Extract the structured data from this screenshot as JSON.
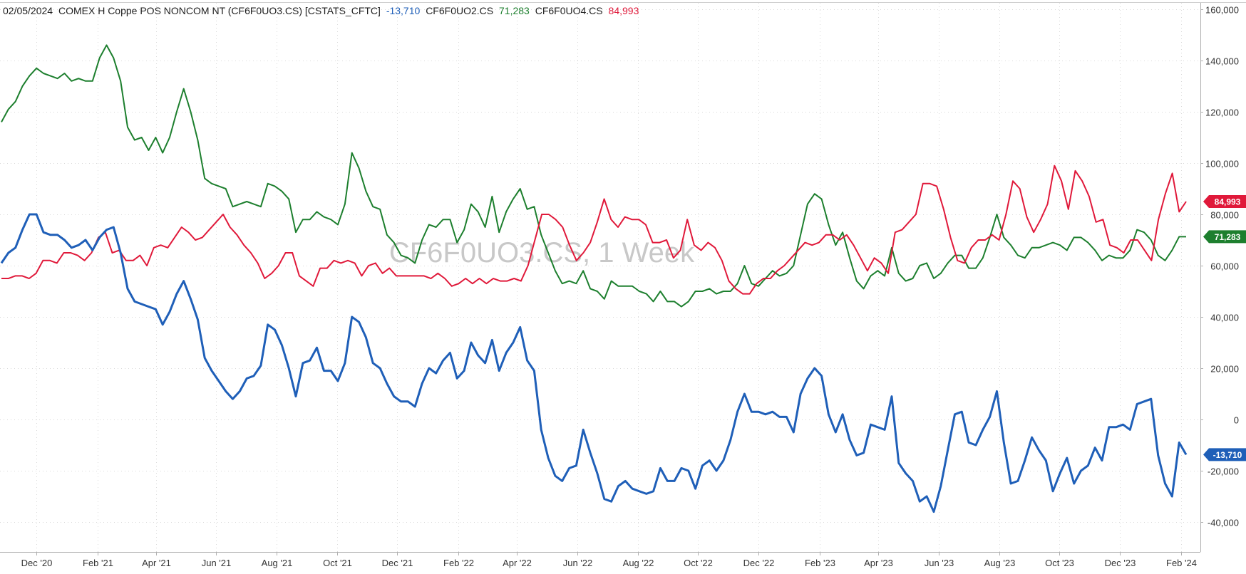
{
  "header": {
    "date": "02/05/2024",
    "series1_name": "COMEX H Coppe POS NONCOM NT (CF6F0UO3.CS) [CSTATS_CFTC]",
    "series1_value": "-13,710",
    "series2_name": "CF6F0UO2.CS",
    "series2_value": "71,283",
    "series3_name": "CF6F0UO4.CS",
    "series3_value": "84,993"
  },
  "watermark": "CF6F0UO3.CS, 1 Week",
  "colors": {
    "blue": "#1f5fb8",
    "green": "#1d7f2e",
    "red": "#e0193a",
    "grid": "#d9d9d9",
    "axis": "#b0b0b0"
  },
  "chart_data": {
    "type": "line",
    "x_start": "2020-10-27",
    "x_end": "2024-02-06",
    "x_step": "1 week",
    "x_ticks": [
      {
        "date": "2020-12-01",
        "label": "Dec '20"
      },
      {
        "date": "2021-02-01",
        "label": "Feb '21"
      },
      {
        "date": "2021-04-01",
        "label": "Apr '21"
      },
      {
        "date": "2021-06-01",
        "label": "Jun '21"
      },
      {
        "date": "2021-08-01",
        "label": "Aug '21"
      },
      {
        "date": "2021-10-01",
        "label": "Oct '21"
      },
      {
        "date": "2021-12-01",
        "label": "Dec '21"
      },
      {
        "date": "2022-02-01",
        "label": "Feb '22"
      },
      {
        "date": "2022-04-01",
        "label": "Apr '22"
      },
      {
        "date": "2022-06-01",
        "label": "Jun '22"
      },
      {
        "date": "2022-08-01",
        "label": "Aug '22"
      },
      {
        "date": "2022-10-01",
        "label": "Oct '22"
      },
      {
        "date": "2022-12-01",
        "label": "Dec '22"
      },
      {
        "date": "2023-02-01",
        "label": "Feb '23"
      },
      {
        "date": "2023-04-01",
        "label": "Apr '23"
      },
      {
        "date": "2023-06-01",
        "label": "Jun '23"
      },
      {
        "date": "2023-08-01",
        "label": "Aug '23"
      },
      {
        "date": "2023-10-01",
        "label": "Oct '23"
      },
      {
        "date": "2023-12-01",
        "label": "Dec '23"
      },
      {
        "date": "2024-02-01",
        "label": "Feb '24"
      }
    ],
    "y_ticks": [
      {
        "value": 160000,
        "label": "160,000"
      },
      {
        "value": 140000,
        "label": "140,000"
      },
      {
        "value": 120000,
        "label": "120,000"
      },
      {
        "value": 100000,
        "label": "100,000"
      },
      {
        "value": 80000,
        "label": "80,000"
      },
      {
        "value": 60000,
        "label": "60,000"
      },
      {
        "value": 40000,
        "label": "40,000"
      },
      {
        "value": 20000,
        "label": "20,000"
      },
      {
        "value": 0,
        "label": "0"
      },
      {
        "value": -20000,
        "label": "-20,000"
      },
      {
        "value": -40000,
        "label": "-40,000"
      }
    ],
    "ylim": [
      -50000,
      162000
    ],
    "grid": true,
    "series": [
      {
        "name": "CF6F0UO2.CS",
        "color": "#1d7f2e",
        "last_label": "71,283",
        "values": [
          116000,
          121000,
          124000,
          130000,
          134000,
          137000,
          135000,
          134000,
          133000,
          135000,
          132000,
          133000,
          132000,
          132000,
          141000,
          146000,
          141000,
          132000,
          114000,
          109000,
          110000,
          105000,
          110000,
          104000,
          110000,
          120000,
          129000,
          120000,
          109000,
          94000,
          92000,
          91000,
          90000,
          83000,
          84000,
          85000,
          84000,
          83000,
          92000,
          91000,
          89000,
          86000,
          73000,
          78000,
          78000,
          81000,
          79000,
          78000,
          76000,
          84000,
          104000,
          98000,
          89000,
          83000,
          82000,
          72000,
          69000,
          64000,
          63000,
          61000,
          70000,
          76000,
          75000,
          78000,
          78000,
          69000,
          74000,
          84000,
          81000,
          75000,
          87000,
          73000,
          81000,
          86000,
          90000,
          82000,
          83000,
          72000,
          65000,
          58000,
          53000,
          54000,
          53000,
          58000,
          51000,
          50000,
          47000,
          54000,
          52000,
          52000,
          52000,
          50000,
          49000,
          46000,
          50000,
          46000,
          46000,
          44000,
          46000,
          50000,
          50000,
          51000,
          49000,
          50000,
          50000,
          53000,
          60000,
          53000,
          52000,
          55000,
          58000,
          56000,
          57000,
          60000,
          72000,
          84000,
          88000,
          86000,
          76000,
          68000,
          73000,
          63000,
          54000,
          51000,
          56000,
          58000,
          56000,
          67000,
          57000,
          54000,
          55000,
          60000,
          61000,
          55000,
          57000,
          61000,
          64000,
          64000,
          59000,
          59000,
          63000,
          71000,
          80000,
          71000,
          68000,
          64000,
          63000,
          67000,
          67000,
          68000,
          69000,
          68000,
          66000,
          71000,
          71000,
          69000,
          66000,
          62000,
          64000,
          63000,
          63000,
          66000,
          74000,
          73000,
          70000,
          64000,
          62000,
          66000,
          71283,
          71283
        ]
      },
      {
        "name": "CF6F0UO4.CS",
        "color": "#e0193a",
        "last_label": "84,993",
        "values": [
          55000,
          55000,
          56000,
          56000,
          55000,
          57000,
          62000,
          62000,
          61000,
          65000,
          65000,
          64000,
          62000,
          65000,
          71000,
          73000,
          65000,
          66000,
          62000,
          62000,
          64000,
          60000,
          67000,
          68000,
          67000,
          71000,
          75000,
          73000,
          70000,
          71000,
          74000,
          77000,
          80000,
          75000,
          72000,
          68000,
          65000,
          61000,
          55000,
          57000,
          60000,
          65000,
          65000,
          56000,
          54000,
          52000,
          59000,
          59000,
          62000,
          61000,
          62000,
          61000,
          56000,
          60000,
          61000,
          57000,
          59000,
          56000,
          56000,
          56000,
          56000,
          56000,
          55000,
          57000,
          55000,
          52000,
          53000,
          55000,
          53000,
          55000,
          53000,
          55000,
          54000,
          54000,
          55000,
          54000,
          60000,
          70000,
          80000,
          80000,
          78000,
          75000,
          68000,
          62000,
          65000,
          69000,
          77000,
          86000,
          78000,
          75000,
          79000,
          78000,
          78000,
          76000,
          69000,
          69000,
          70000,
          63000,
          66000,
          78000,
          68000,
          66000,
          69000,
          67000,
          62000,
          54000,
          51000,
          49000,
          49000,
          53000,
          55000,
          55000,
          58000,
          60000,
          63000,
          66000,
          69000,
          68000,
          69000,
          72000,
          72000,
          70000,
          72000,
          68000,
          63000,
          58000,
          63000,
          61000,
          57000,
          73000,
          74000,
          77000,
          80000,
          92000,
          92000,
          91000,
          82000,
          71000,
          62000,
          61000,
          67000,
          70000,
          70000,
          72000,
          70000,
          80000,
          93000,
          90000,
          79000,
          73000,
          78000,
          84000,
          99000,
          93000,
          82000,
          97000,
          93000,
          87000,
          77000,
          78000,
          68000,
          67000,
          65000,
          70000,
          70000,
          66000,
          62000,
          78000,
          88000,
          96000,
          81000,
          84993
        ]
      },
      {
        "name": "CF6F0UO3.CS",
        "color": "#1f5fb8",
        "last_label": "-13,710",
        "values": [
          61000,
          65000,
          67000,
          74000,
          80000,
          80000,
          73000,
          72000,
          72000,
          70000,
          67000,
          68000,
          70000,
          66000,
          71000,
          74000,
          75000,
          65000,
          51000,
          46000,
          45000,
          44000,
          43000,
          37000,
          42000,
          49000,
          54000,
          47000,
          39000,
          24000,
          19000,
          15000,
          11000,
          8000,
          11000,
          16000,
          17000,
          21000,
          37000,
          35000,
          29000,
          20000,
          9000,
          22000,
          23000,
          28000,
          19000,
          19000,
          15000,
          22000,
          40000,
          38000,
          32000,
          22000,
          20000,
          14000,
          9000,
          7000,
          7000,
          5000,
          14000,
          20000,
          18000,
          23000,
          26000,
          16000,
          19000,
          30000,
          25000,
          22000,
          31000,
          19000,
          26000,
          30000,
          36000,
          23000,
          19000,
          -4000,
          -15000,
          -22000,
          -24000,
          -19000,
          -18000,
          -4000,
          -13000,
          -21000,
          -31000,
          -32000,
          -26000,
          -24000,
          -27000,
          -28000,
          -29000,
          -28000,
          -19000,
          -24000,
          -24000,
          -19000,
          -20000,
          -27000,
          -18000,
          -16000,
          -20000,
          -16000,
          -8000,
          3000,
          10000,
          3000,
          3000,
          2000,
          3000,
          1000,
          1000,
          -5000,
          10000,
          16000,
          20000,
          17000,
          2000,
          -5000,
          2000,
          -8000,
          -14000,
          -13000,
          -2000,
          -3000,
          -4000,
          9000,
          -17000,
          -21000,
          -24000,
          -32000,
          -30000,
          -36000,
          -26000,
          -12000,
          2000,
          3000,
          -9000,
          -10000,
          -4000,
          1000,
          11000,
          -9000,
          -25000,
          -24000,
          -16000,
          -7000,
          -12000,
          -16000,
          -28000,
          -21000,
          -15000,
          -25000,
          -20000,
          -18000,
          -11000,
          -16000,
          -3000,
          -3000,
          -2000,
          -4000,
          6000,
          7000,
          8000,
          -14000,
          -25000,
          -30000,
          -9000,
          -13710
        ]
      }
    ]
  }
}
